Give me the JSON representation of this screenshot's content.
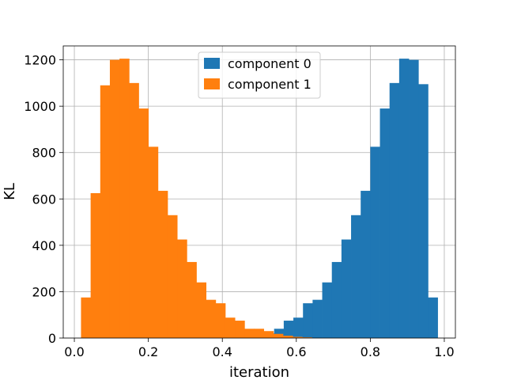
{
  "chart_data": {
    "type": "bar",
    "subtype": "histogram",
    "xlabel": "iteration",
    "ylabel": "KL",
    "xlim": [
      -0.03,
      1.03
    ],
    "ylim": [
      0,
      1260
    ],
    "xticks": [
      0.0,
      0.2,
      0.4,
      0.6,
      0.8,
      1.0
    ],
    "xtick_labels": [
      "0.0",
      "0.2",
      "0.4",
      "0.6",
      "0.8",
      "1.0"
    ],
    "yticks": [
      0,
      200,
      400,
      600,
      800,
      1000,
      1200
    ],
    "ytick_labels": [
      "0",
      "200",
      "400",
      "600",
      "800",
      "1000",
      "1200"
    ],
    "grid": true,
    "legend_position": "top-center",
    "series": [
      {
        "name": "component 0",
        "color": "#1f77b4",
        "bins": [
          [
            0.02,
            0.046,
            0
          ],
          [
            0.046,
            0.072,
            0
          ],
          [
            0.072,
            0.098,
            0
          ],
          [
            0.098,
            0.124,
            0
          ],
          [
            0.124,
            0.15,
            0
          ],
          [
            0.15,
            0.176,
            0
          ],
          [
            0.176,
            0.202,
            0
          ],
          [
            0.202,
            0.228,
            0
          ],
          [
            0.228,
            0.254,
            0
          ],
          [
            0.254,
            0.28,
            0
          ],
          [
            0.28,
            0.306,
            0
          ],
          [
            0.306,
            0.332,
            0
          ],
          [
            0.332,
            0.358,
            0
          ],
          [
            0.358,
            0.384,
            0
          ],
          [
            0.384,
            0.41,
            0
          ],
          [
            0.41,
            0.436,
            0
          ],
          [
            0.436,
            0.462,
            0
          ],
          [
            0.462,
            0.488,
            5
          ],
          [
            0.488,
            0.514,
            10
          ],
          [
            0.514,
            0.54,
            20
          ],
          [
            0.54,
            0.566,
            40
          ],
          [
            0.566,
            0.592,
            75
          ],
          [
            0.592,
            0.618,
            88
          ],
          [
            0.618,
            0.644,
            150
          ],
          [
            0.644,
            0.67,
            165
          ],
          [
            0.67,
            0.696,
            240
          ],
          [
            0.696,
            0.722,
            328
          ],
          [
            0.722,
            0.748,
            425
          ],
          [
            0.748,
            0.774,
            530
          ],
          [
            0.774,
            0.8,
            635
          ],
          [
            0.8,
            0.826,
            825
          ],
          [
            0.826,
            0.852,
            990
          ],
          [
            0.852,
            0.878,
            1100
          ],
          [
            0.878,
            0.904,
            1205
          ],
          [
            0.904,
            0.93,
            1200
          ],
          [
            0.93,
            0.956,
            1095
          ],
          [
            0.956,
            0.982,
            175
          ]
        ]
      },
      {
        "name": "component 1",
        "color": "#ff7f0e",
        "bins": [
          [
            0.018,
            0.044,
            175
          ],
          [
            0.044,
            0.07,
            625
          ],
          [
            0.07,
            0.096,
            1090
          ],
          [
            0.096,
            0.122,
            1200
          ],
          [
            0.122,
            0.148,
            1205
          ],
          [
            0.148,
            0.174,
            1100
          ],
          [
            0.174,
            0.2,
            990
          ],
          [
            0.2,
            0.226,
            825
          ],
          [
            0.226,
            0.252,
            635
          ],
          [
            0.252,
            0.278,
            530
          ],
          [
            0.278,
            0.304,
            425
          ],
          [
            0.304,
            0.33,
            328
          ],
          [
            0.33,
            0.356,
            240
          ],
          [
            0.356,
            0.382,
            165
          ],
          [
            0.382,
            0.408,
            150
          ],
          [
            0.408,
            0.434,
            88
          ],
          [
            0.434,
            0.46,
            75
          ],
          [
            0.46,
            0.486,
            40
          ],
          [
            0.486,
            0.512,
            40
          ],
          [
            0.512,
            0.538,
            30
          ],
          [
            0.538,
            0.564,
            18
          ],
          [
            0.564,
            0.59,
            10
          ],
          [
            0.59,
            0.616,
            5
          ],
          [
            0.616,
            0.642,
            3
          ]
        ]
      }
    ]
  }
}
